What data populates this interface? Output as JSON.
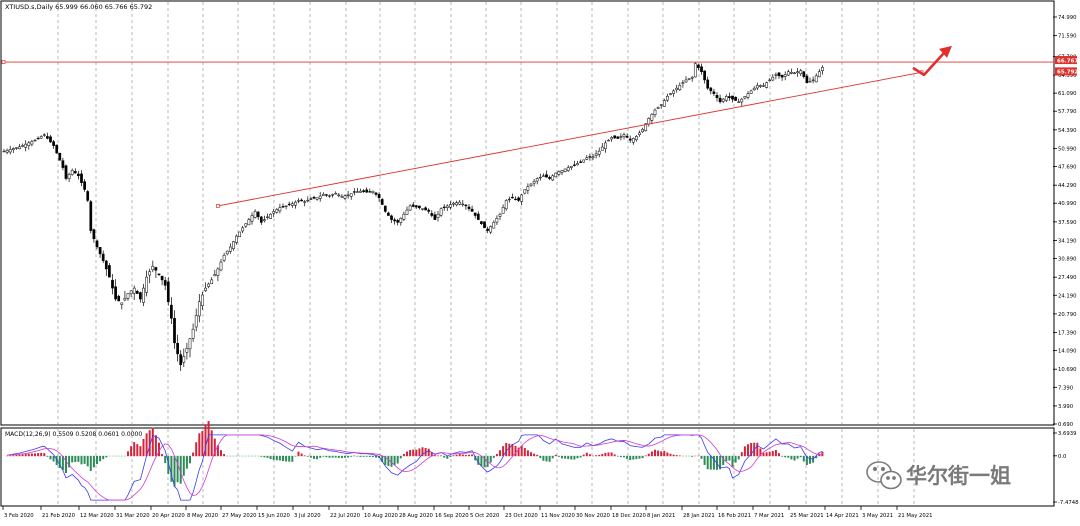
{
  "chart_data": {
    "type": "candlestick",
    "symbol_header": "XTIUSD.s,Daily  65.999 66.060 65.766 65.792",
    "price_axis": {
      "min": 0.69,
      "max": 74.99,
      "ticks": [
        "74.990",
        "71.590",
        "67.790",
        "64.390",
        "61.090",
        "57.790",
        "54.390",
        "50.990",
        "47.690",
        "44.290",
        "40.990",
        "37.590",
        "34.190",
        "30.890",
        "27.490",
        "24.190",
        "20.790",
        "17.390",
        "14.090",
        "10.690",
        "7.390",
        "3.990",
        "0.690"
      ]
    },
    "price_tags": [
      {
        "label": "66.767",
        "value": 66.767,
        "color": "#e0302c"
      },
      {
        "label": "65.792",
        "value": 65.792,
        "color": "#e0302c"
      }
    ],
    "date_labels": [
      "3 Feb 2020",
      "21 Feb 2020",
      "12 Mar 2020",
      "31 Mar 2020",
      "20 Apr 2020",
      "8 May 2020",
      "27 May 2020",
      "15 Jun 2020",
      "3 Jul 2020",
      "22 Jul 2020",
      "10 Aug 2020",
      "28 Aug 2020",
      "16 Sep 2020",
      "5 Oct 2020",
      "23 Oct 2020",
      "11 Nov 2020",
      "30 Nov 2020",
      "18 Dec 2020",
      "8 Jan 2021",
      "28 Jan 2021",
      "16 Feb 2021",
      "7 Mar 2021",
      "25 Mar 2021",
      "14 Apr 2021",
      "3 May 2021",
      "21 May 2021"
    ],
    "series": [
      {
        "name": "XTIUSD.s",
        "x_unit": "trading days from 3 Feb 2020",
        "points": [
          [
            0,
            50.5
          ],
          [
            5,
            51.3
          ],
          [
            10,
            52.5
          ],
          [
            13,
            53.5
          ],
          [
            16,
            51.5
          ],
          [
            19,
            47.5
          ],
          [
            20,
            45.5
          ],
          [
            22,
            47.0
          ],
          [
            24,
            46.0
          ],
          [
            26,
            43.5
          ],
          [
            27,
            41.5
          ],
          [
            28,
            36.0
          ],
          [
            30,
            33.0
          ],
          [
            32,
            30.5
          ],
          [
            34,
            27.5
          ],
          [
            36,
            23.5
          ],
          [
            38,
            22.8
          ],
          [
            40,
            24.5
          ],
          [
            42,
            25.5
          ],
          [
            44,
            23.5
          ],
          [
            46,
            27.5
          ],
          [
            48,
            29.5
          ],
          [
            50,
            28.0
          ],
          [
            52,
            26.0
          ],
          [
            54,
            20.0
          ],
          [
            55,
            15.5
          ],
          [
            57,
            11.5
          ],
          [
            59,
            14.5
          ],
          [
            61,
            18.0
          ],
          [
            63,
            23.0
          ],
          [
            65,
            25.5
          ],
          [
            67,
            27.0
          ],
          [
            69,
            29.0
          ],
          [
            71,
            31.5
          ],
          [
            73,
            33.0
          ],
          [
            75,
            35.0
          ],
          [
            77,
            36.5
          ],
          [
            79,
            38.0
          ],
          [
            81,
            39.5
          ],
          [
            83,
            37.5
          ],
          [
            85,
            38.5
          ],
          [
            87,
            39.5
          ],
          [
            89,
            40.2
          ],
          [
            91,
            40.5
          ],
          [
            93,
            40.9
          ],
          [
            95,
            41.5
          ],
          [
            97,
            41.3
          ],
          [
            99,
            41.8
          ],
          [
            101,
            42.0
          ],
          [
            103,
            42.6
          ],
          [
            105,
            42.4
          ],
          [
            107,
            42.8
          ],
          [
            109,
            42.2
          ],
          [
            111,
            42.5
          ],
          [
            113,
            43.0
          ],
          [
            115,
            43.2
          ],
          [
            117,
            43.0
          ],
          [
            119,
            43.2
          ],
          [
            121,
            42.0
          ],
          [
            123,
            39.5
          ],
          [
            125,
            38.0
          ],
          [
            127,
            37.5
          ],
          [
            129,
            39.0
          ],
          [
            131,
            40.5
          ],
          [
            133,
            40.3
          ],
          [
            135,
            40.0
          ],
          [
            137,
            39.5
          ],
          [
            139,
            38.0
          ],
          [
            141,
            40.0
          ],
          [
            143,
            40.5
          ],
          [
            145,
            41.0
          ],
          [
            147,
            41.2
          ],
          [
            149,
            40.5
          ],
          [
            151,
            39.5
          ],
          [
            153,
            38.0
          ],
          [
            155,
            36.5
          ],
          [
            156,
            36.0
          ],
          [
            158,
            37.5
          ],
          [
            160,
            39.0
          ],
          [
            162,
            41.5
          ],
          [
            164,
            42.0
          ],
          [
            166,
            41.5
          ],
          [
            168,
            43.5
          ],
          [
            170,
            44.5
          ],
          [
            172,
            45.5
          ],
          [
            174,
            46.0
          ],
          [
            176,
            45.5
          ],
          [
            178,
            46.5
          ],
          [
            180,
            47.0
          ],
          [
            182,
            47.5
          ],
          [
            184,
            48.0
          ],
          [
            186,
            48.5
          ],
          [
            188,
            49.3
          ],
          [
            190,
            49.5
          ],
          [
            192,
            50.5
          ],
          [
            194,
            52.0
          ],
          [
            196,
            53.0
          ],
          [
            198,
            52.8
          ],
          [
            200,
            53.5
          ],
          [
            202,
            52.5
          ],
          [
            204,
            53.2
          ],
          [
            206,
            54.5
          ],
          [
            208,
            56.5
          ],
          [
            210,
            58.0
          ],
          [
            212,
            59.0
          ],
          [
            214,
            60.5
          ],
          [
            216,
            61.5
          ],
          [
            218,
            62.5
          ],
          [
            220,
            63.5
          ],
          [
            222,
            64.0
          ],
          [
            223,
            66.5
          ],
          [
            225,
            65.0
          ],
          [
            227,
            62.0
          ],
          [
            229,
            61.0
          ],
          [
            231,
            59.5
          ],
          [
            233,
            60.5
          ],
          [
            235,
            60.0
          ],
          [
            237,
            59.5
          ],
          [
            239,
            60.5
          ],
          [
            241,
            61.5
          ],
          [
            243,
            62.5
          ],
          [
            245,
            62.5
          ],
          [
            247,
            63.5
          ],
          [
            249,
            64.5
          ],
          [
            251,
            64.0
          ],
          [
            253,
            65.0
          ],
          [
            255,
            64.8
          ],
          [
            257,
            65.2
          ],
          [
            259,
            63.0
          ],
          [
            261,
            63.5
          ],
          [
            263,
            65.0
          ],
          [
            264,
            65.8
          ]
        ]
      }
    ],
    "resistance_line": {
      "value": 66.767,
      "color": "#e0302c"
    },
    "support_line": {
      "from": [
        69,
        40.5
      ],
      "to": [
        296,
        64.9
      ],
      "color": "#e0302c"
    },
    "arrow_color": "#e0302c",
    "macd": {
      "header": "MACD(12,26,9) 0.5509 0.5208 0.0601 0.0000",
      "ticks": [
        "3.6939",
        "0.0",
        "-7.4748"
      ],
      "ymin": -7.4748,
      "ymax": 3.6939,
      "hist_up_color": "#d4243c",
      "hist_down_color": "#2e8b57",
      "line1_color": "#3a3af0",
      "line2_color": "#d23ad2"
    },
    "watermark_text": "华尔街一姐"
  }
}
